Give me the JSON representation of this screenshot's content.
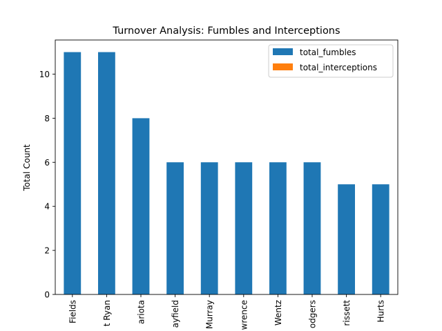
{
  "chart_data": {
    "type": "bar",
    "title": "Turnover Analysis: Fumbles and Interceptions",
    "xlabel": "",
    "ylabel": "Total Count",
    "categories": [
      "Fields",
      "t Ryan",
      "ariota",
      "ayfield",
      "Murray",
      "wrence",
      "Wentz",
      "odgers",
      "rissett",
      "Hurts"
    ],
    "series": [
      {
        "name": "total_fumbles",
        "values": [
          11,
          11,
          8,
          6,
          6,
          6,
          6,
          6,
          5,
          5
        ],
        "color": "#1f77b4"
      },
      {
        "name": "total_interceptions",
        "values": [
          0,
          0,
          0,
          0,
          0,
          0,
          0,
          0,
          0,
          0
        ],
        "color": "#ff7f0e"
      }
    ],
    "ylim": [
      0,
      11.55
    ],
    "yticks": [
      0,
      2,
      4,
      6,
      8,
      10
    ],
    "stacked": true,
    "grid": false,
    "legend_position": "top-right"
  }
}
